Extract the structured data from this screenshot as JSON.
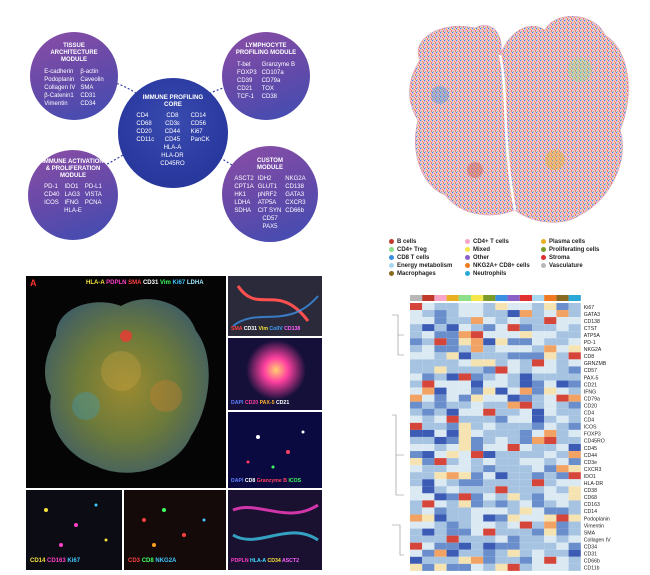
{
  "diagram": {
    "core": {
      "title": "IMMUNE PROFILING CORE",
      "col_left": [
        "CD4",
        "CD68",
        "CD20",
        "CD11c"
      ],
      "col_mid": [
        "CD8",
        "CD3ε",
        "CD44",
        "CD45",
        "HLA-A",
        "HLA-DR",
        "CD45RO"
      ],
      "col_right": [
        "CD14",
        "CD56",
        "Ki67",
        "PanCK"
      ]
    },
    "tissue": {
      "title": "TISSUE ARCHITECTURE MODULE",
      "col_left": [
        "E-cadherin",
        "Podoplanin",
        "Collagen IV",
        "β-Catenin1",
        "Vimentin"
      ],
      "col_right": [
        "β-actin",
        "Caveolin",
        "SMA",
        "CD31",
        "CD34"
      ]
    },
    "lymphocyte": {
      "title": "LYMPHOCYTE PROFILING MODULE",
      "col_left": [
        "T-bet",
        "FOXP3",
        "CD39",
        "CD21",
        "TCF-1"
      ],
      "col_right": [
        "Granzyme B",
        "CD107a",
        "CD79a",
        "TOX",
        "CD38"
      ]
    },
    "immune": {
      "title": "IMMUNE ACTIVATION & PROLIFERATION MODULE",
      "col_left": [
        "PD-1",
        "CD40",
        "ICOS"
      ],
      "col_mid": [
        "IDO1",
        "LAG3",
        "IFNG"
      ],
      "col_right": [
        "PD-L1",
        "VISTA",
        "PCNA"
      ],
      "last": "HLA-E"
    },
    "custom": {
      "title": "CUSTOM MODULE",
      "col_left": [
        "ASCT2",
        "CPT1A",
        "HK1",
        "LDHA",
        "SDHA"
      ],
      "col_mid": [
        "IDH2",
        "GLUT1",
        "pNRF2",
        "ATP5A",
        "CIT SYN"
      ],
      "col_right": [
        "NKG2A",
        "CD138",
        "GATA3",
        "CXCR3",
        "CD66b"
      ],
      "last1": "CD57",
      "last2": "PAX5"
    }
  },
  "legend": [
    {
      "label": "B cells",
      "color": "#c0392b"
    },
    {
      "label": "CD4+ T cells",
      "color": "#f6a5c8"
    },
    {
      "label": "Plasma cells",
      "color": "#e8b020"
    },
    {
      "label": "CD4+ Treg",
      "color": "#8de08a"
    },
    {
      "label": "Mixed",
      "color": "#f5e64a"
    },
    {
      "label": "Proliferating cells",
      "color": "#7a9a2a"
    },
    {
      "label": "CD8 T cells",
      "color": "#3a8fe0"
    },
    {
      "label": "Other",
      "color": "#8a5fc8"
    },
    {
      "label": "Stroma",
      "color": "#e03030"
    },
    {
      "label": "Energy metabolism",
      "color": "#a8d8f0"
    },
    {
      "label": "NKG2A+ CD8+ cells",
      "color": "#f07a20"
    },
    {
      "label": "Vasculature",
      "color": "#b8b8b8"
    },
    {
      "label": "Macrophages",
      "color": "#8a6a20"
    },
    {
      "label": "Neutrophils",
      "color": "#2aa8d8"
    }
  ],
  "panels": {
    "main_letter": "A",
    "main": [
      {
        "text": "HLA-A",
        "color": "#f2e23c"
      },
      {
        "text": "PDPLN",
        "color": "#ff40c8"
      },
      {
        "text": "SMA",
        "color": "#ff4040"
      },
      {
        "text": "CD31",
        "color": "#ffffff"
      },
      {
        "text": "Vim",
        "color": "#40ff60"
      },
      {
        "text": "Ki67",
        "color": "#40c8ff"
      },
      {
        "text": "LDHA",
        "color": "#a0e8ff"
      }
    ],
    "p1": [
      {
        "text": "SMA",
        "color": "#ff4040"
      },
      {
        "text": "CD31",
        "color": "#ffffff"
      },
      {
        "text": "Vim",
        "color": "#f2e23c"
      },
      {
        "text": "ColIV",
        "color": "#40a0ff"
      },
      {
        "text": "CD138",
        "color": "#ff60ff"
      }
    ],
    "p2": [
      {
        "text": "DAPI",
        "color": "#6080ff"
      },
      {
        "text": "CD20",
        "color": "#ff40a0"
      },
      {
        "text": "PAX-5",
        "color": "#ffb030"
      },
      {
        "text": "CD21",
        "color": "#ffffff"
      }
    ],
    "p3": [
      {
        "text": "DAPI",
        "color": "#6080ff"
      },
      {
        "text": "CD8",
        "color": "#ffffff"
      },
      {
        "text": "Granzyme B",
        "color": "#ff4060"
      },
      {
        "text": "ICOS",
        "color": "#40ff60"
      }
    ],
    "b1": [
      {
        "text": "CD14",
        "color": "#f2e23c"
      },
      {
        "text": "CD163",
        "color": "#ff40c8"
      },
      {
        "text": "Ki67",
        "color": "#40c8ff"
      }
    ],
    "b2": [
      {
        "text": "CD3",
        "color": "#ff4040"
      },
      {
        "text": "CD8",
        "color": "#40ff60"
      },
      {
        "text": "NKG2A",
        "color": "#40c8ff"
      }
    ],
    "b3": [
      {
        "text": "PDPLN",
        "color": "#ff40c8"
      },
      {
        "text": "HLA-A",
        "color": "#40e0ff"
      },
      {
        "text": "CD34",
        "color": "#f2e23c"
      },
      {
        "text": "ASCT2",
        "color": "#ff60ff"
      }
    ]
  },
  "heatmap": {
    "rows": [
      "Ki67",
      "GATA3",
      "CD138",
      "CTST",
      "ATP5A",
      "PD-1",
      "NKG2A",
      "CD8",
      "GRNZMB",
      "CD57",
      "PAX-5",
      "CD21",
      "IFNG",
      "CD79a",
      "CD20",
      "CD4",
      "CD4",
      "ICOS",
      "FOXP3",
      "CD45RO",
      "CD45",
      "CD44",
      "CD3e",
      "CXCR3",
      "IDO1",
      "HLA-DR",
      "CD38",
      "CD68",
      "CD163",
      "CD14",
      "Podoplanin",
      "Vimentin",
      "SMA",
      "Collagen IV",
      "CD34",
      "CD31",
      "CD66b",
      "CD11b"
    ],
    "col_colors": [
      "#b8b8b8",
      "#c0392b",
      "#f6a5c8",
      "#e8b020",
      "#8de08a",
      "#f5e64a",
      "#7a9a2a",
      "#3a8fe0",
      "#8a5fc8",
      "#e03030",
      "#a8d8f0",
      "#f07a20",
      "#8a6a20",
      "#2aa8d8"
    ]
  }
}
